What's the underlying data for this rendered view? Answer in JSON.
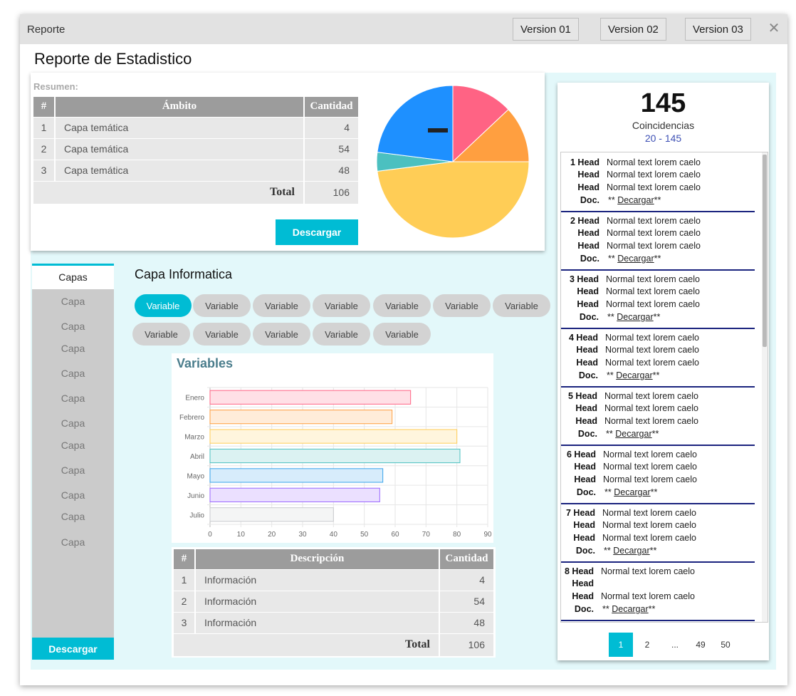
{
  "window": {
    "title": "Reporte",
    "versions": [
      "Version 01",
      "Version 02",
      "Version 03"
    ],
    "close_glyph": "✕"
  },
  "page_title": "Reporte de Estadistico",
  "summary": {
    "label": "Resumen:",
    "headers": {
      "num": "#",
      "ambito": "Ámbito",
      "cantidad": "Cantidad"
    },
    "rows": [
      {
        "num": "1",
        "ambito": "Capa temática",
        "cantidad": "4"
      },
      {
        "num": "2",
        "ambito": "Capa temática",
        "cantidad": "54"
      },
      {
        "num": "3",
        "ambito": "Capa temática",
        "cantidad": "48"
      }
    ],
    "total_label": "Total",
    "total_value": "106",
    "download_label": "Descargar"
  },
  "pie_colors": [
    "#ff6384",
    "#ff9f40",
    "#ffcd56",
    "#4bc0c0",
    "#1e90ff"
  ],
  "sidebar": {
    "active_tab": "Capas",
    "items": [
      "Capa",
      "Capa",
      "Capa",
      "Capa",
      "Capa",
      "Capa",
      "Capa",
      "Capa",
      "Capa",
      "Capa",
      "Capa"
    ],
    "download_label": "Descargar"
  },
  "capa": {
    "title": "Capa Informatica",
    "chips": [
      "Variable",
      "Variable",
      "Variable",
      "Variable",
      "Variable",
      "Variable",
      "Variable",
      "Variable",
      "Variable",
      "Variable",
      "Variable",
      "Variable"
    ],
    "active_chip": 0
  },
  "chart_data": [
    {
      "type": "pie",
      "values": [
        13,
        12,
        48,
        4,
        23
      ],
      "colors": [
        "#ff6384",
        "#ff9f40",
        "#ffcd56",
        "#4bc0c0",
        "#1e90ff"
      ]
    },
    {
      "type": "bar",
      "orientation": "horizontal",
      "title": "Variables",
      "categories": [
        "Enero",
        "Febrero",
        "Marzo",
        "Abril",
        "Mayo",
        "Junio",
        "Julio"
      ],
      "values": [
        65,
        59,
        80,
        81,
        56,
        55,
        40
      ],
      "xlim": [
        0,
        90
      ],
      "xticks": [
        0,
        10,
        20,
        30,
        40,
        50,
        60,
        70,
        80,
        90
      ],
      "grid": true,
      "fill_colors": [
        "#ffe0e6",
        "#ffecd9",
        "#fff5dd",
        "#dbf2f2",
        "#d7ecfb",
        "#ebe0ff",
        "#f4f5f5"
      ],
      "stroke_colors": [
        "#ff6384",
        "#ff9f40",
        "#ffcd56",
        "#4bc0c0",
        "#36a2eb",
        "#9966ff",
        "#c9cbcf"
      ]
    }
  ],
  "desc_table": {
    "headers": {
      "num": "#",
      "descripcion": "Descripción",
      "cantidad": "Cantidad"
    },
    "rows": [
      {
        "num": "1",
        "descripcion": "Información",
        "cantidad": "4"
      },
      {
        "num": "2",
        "descripcion": "Información",
        "cantidad": "54"
      },
      {
        "num": "3",
        "descripcion": "Información",
        "cantidad": "48"
      }
    ],
    "total_label": "Total",
    "total_value": "106"
  },
  "results": {
    "count": "145",
    "count_label": "Coincidencias",
    "range": "20 - 145",
    "entries": [
      {
        "num": "1",
        "head": "Head",
        "texts": [
          "Normal text lorem caelo",
          "Normal text lorem caelo",
          "Normal text lorem caelo"
        ],
        "doc_label": "Doc.",
        "stars": "**",
        "link": "Decargar"
      },
      {
        "num": "2",
        "head": "Head",
        "texts": [
          "Normal text lorem caelo",
          "Normal text lorem caelo",
          "Normal text lorem caelo"
        ],
        "doc_label": "Doc.",
        "stars": "**",
        "link": "Decargar"
      },
      {
        "num": "3",
        "head": "Head",
        "texts": [
          "Normal text lorem caelo",
          "Normal text lorem caelo",
          "Normal text lorem caelo"
        ],
        "doc_label": "Doc.",
        "stars": "**",
        "link": "Decargar"
      },
      {
        "num": "4",
        "head": "Head",
        "texts": [
          "Normal text lorem caelo",
          "Normal text lorem caelo",
          "Normal text lorem caelo"
        ],
        "doc_label": "Doc.",
        "stars": "**",
        "link": "Decargar"
      },
      {
        "num": "5",
        "head": "Head",
        "texts": [
          "Normal text lorem caelo",
          "Normal text lorem caelo",
          "Normal text lorem caelo"
        ],
        "doc_label": "Doc.",
        "stars": "**",
        "link": "Decargar"
      },
      {
        "num": "6",
        "head": "Head",
        "texts": [
          "Normal text lorem caelo",
          "Normal text lorem caelo",
          "Normal text lorem caelo"
        ],
        "doc_label": "Doc.",
        "stars": "**",
        "link": "Decargar"
      },
      {
        "num": "7",
        "head": "Head",
        "texts": [
          "Normal text lorem caelo",
          "Normal text lorem caelo",
          "Normal text lorem caelo"
        ],
        "doc_label": "Doc.",
        "stars": "**",
        "link": "Decargar"
      },
      {
        "num": "8",
        "head": "Head",
        "texts": [
          "Normal text lorem caelo",
          "",
          "Normal text lorem caelo"
        ],
        "doc_label": "Doc.",
        "stars": "**",
        "link": "Decargar"
      }
    ],
    "pager": {
      "pages": [
        "1",
        "2",
        "...",
        "49",
        "50"
      ],
      "active": "1"
    }
  }
}
